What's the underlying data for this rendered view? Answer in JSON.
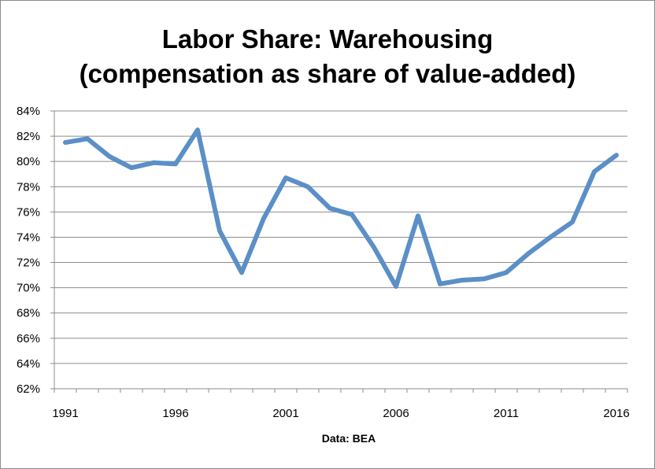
{
  "chart_data": {
    "type": "line",
    "title_lines": [
      "Labor Share: Warehousing",
      "(compensation as share of value-added)"
    ],
    "xlabel": "Data: BEA",
    "ylabel": "",
    "x": [
      1991,
      1992,
      1993,
      1994,
      1995,
      1996,
      1997,
      1998,
      1999,
      2000,
      2001,
      2002,
      2003,
      2004,
      2005,
      2006,
      2007,
      2008,
      2009,
      2010,
      2011,
      2012,
      2013,
      2014,
      2015,
      2016
    ],
    "xlim": [
      1991,
      2016
    ],
    "x_tick_labels": [
      "1991",
      "1996",
      "2001",
      "2006",
      "2011",
      "2016"
    ],
    "ylim": [
      62,
      84
    ],
    "y_tick_labels": [
      "62%",
      "64%",
      "66%",
      "68%",
      "70%",
      "72%",
      "74%",
      "76%",
      "78%",
      "80%",
      "82%",
      "84%"
    ],
    "grid": "horizontal",
    "series": [
      {
        "values": [
          81.5,
          81.8,
          80.4,
          79.5,
          79.9,
          79.8,
          82.5,
          74.5,
          71.2,
          75.5,
          78.7,
          78.0,
          76.3,
          75.8,
          73.2,
          70.1,
          75.7,
          70.3,
          70.6,
          70.7,
          71.2,
          72.7,
          74.0,
          75.2,
          79.2,
          80.5
        ],
        "color": "#5b8fc7"
      }
    ],
    "colors": {
      "line": "#5b8fc7",
      "grid": "#8c8c8c",
      "axis": "#8c8c8c"
    }
  }
}
